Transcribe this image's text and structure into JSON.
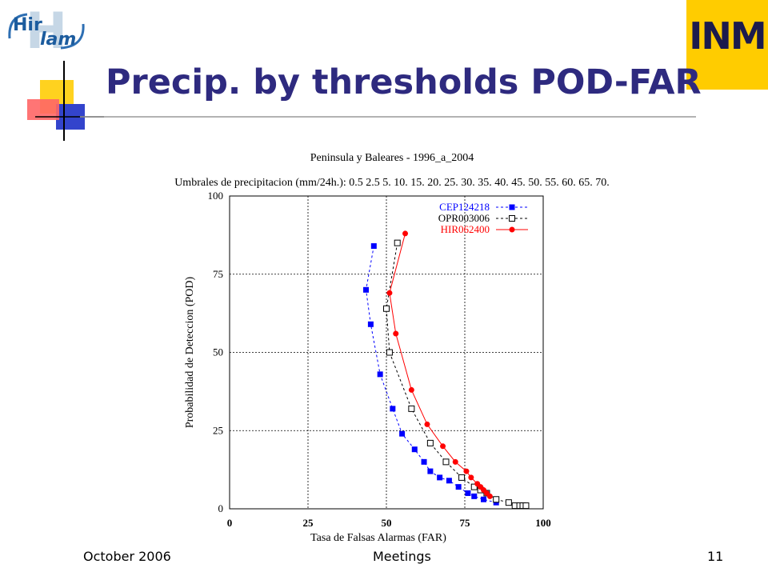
{
  "slide": {
    "title": "Precip. by thresholds POD-FAR",
    "footer_left": "October  2006",
    "footer_center": "Meetings",
    "page_number": "11",
    "logo_left_text": "Hirlam",
    "logo_right_text": "INM"
  },
  "colors": {
    "title": "#2e2a7f",
    "cep": "#0000ff",
    "opr": "#000000",
    "hir": "#ff0000"
  },
  "chart_data": {
    "type": "line",
    "title": "Peninsula y Baleares  -  1996_a_2004",
    "subtitle": "Umbrales de precipitacion (mm/24h.): 0.5  2.5  5.  10.  15.  20.  25.  30.  35.  40.  45.  50.  55.  60.  65.  70.",
    "xlabel": "Tasa de Falsas Alarmas (FAR)",
    "ylabel": "Probabilidad de Deteccion (POD)",
    "xlim": [
      0,
      100
    ],
    "ylim": [
      0,
      100
    ],
    "xticks": [
      "0",
      "25",
      "50",
      "75",
      "100"
    ],
    "yticks": [
      "0",
      "25",
      "50",
      "75",
      "100"
    ],
    "grid": true,
    "legend_position": "top-right",
    "series": [
      {
        "name": "CEP124218",
        "color": "#0000ff",
        "marker": "square-filled",
        "line": "dashed",
        "x": [
          46,
          43.5,
          45,
          48,
          52,
          55,
          59,
          62,
          64,
          67,
          70,
          73,
          76,
          78,
          81,
          85
        ],
        "y": [
          84,
          70,
          59,
          43,
          32,
          24,
          19,
          15,
          12,
          10,
          9,
          7,
          5,
          4,
          3,
          2
        ]
      },
      {
        "name": "OPR003006",
        "color": "#000000",
        "marker": "square-open",
        "line": "dashed",
        "x": [
          53.5,
          50,
          51,
          58,
          64,
          69,
          74,
          78,
          80,
          82,
          85,
          89,
          91,
          92.5,
          93.5,
          94.5
        ],
        "y": [
          85,
          64,
          50,
          32,
          21,
          15,
          10,
          7,
          6,
          5,
          3,
          2,
          1,
          1,
          1,
          1
        ]
      },
      {
        "name": "HIR062400",
        "color": "#ff0000",
        "marker": "circle-filled",
        "line": "solid",
        "x": [
          56,
          51,
          53,
          58,
          63,
          68,
          72,
          75.5,
          77,
          79,
          80,
          81,
          82,
          83
        ],
        "y": [
          88,
          69,
          56,
          38,
          27,
          20,
          15,
          12,
          10,
          8,
          7,
          6,
          5,
          4
        ]
      }
    ]
  }
}
